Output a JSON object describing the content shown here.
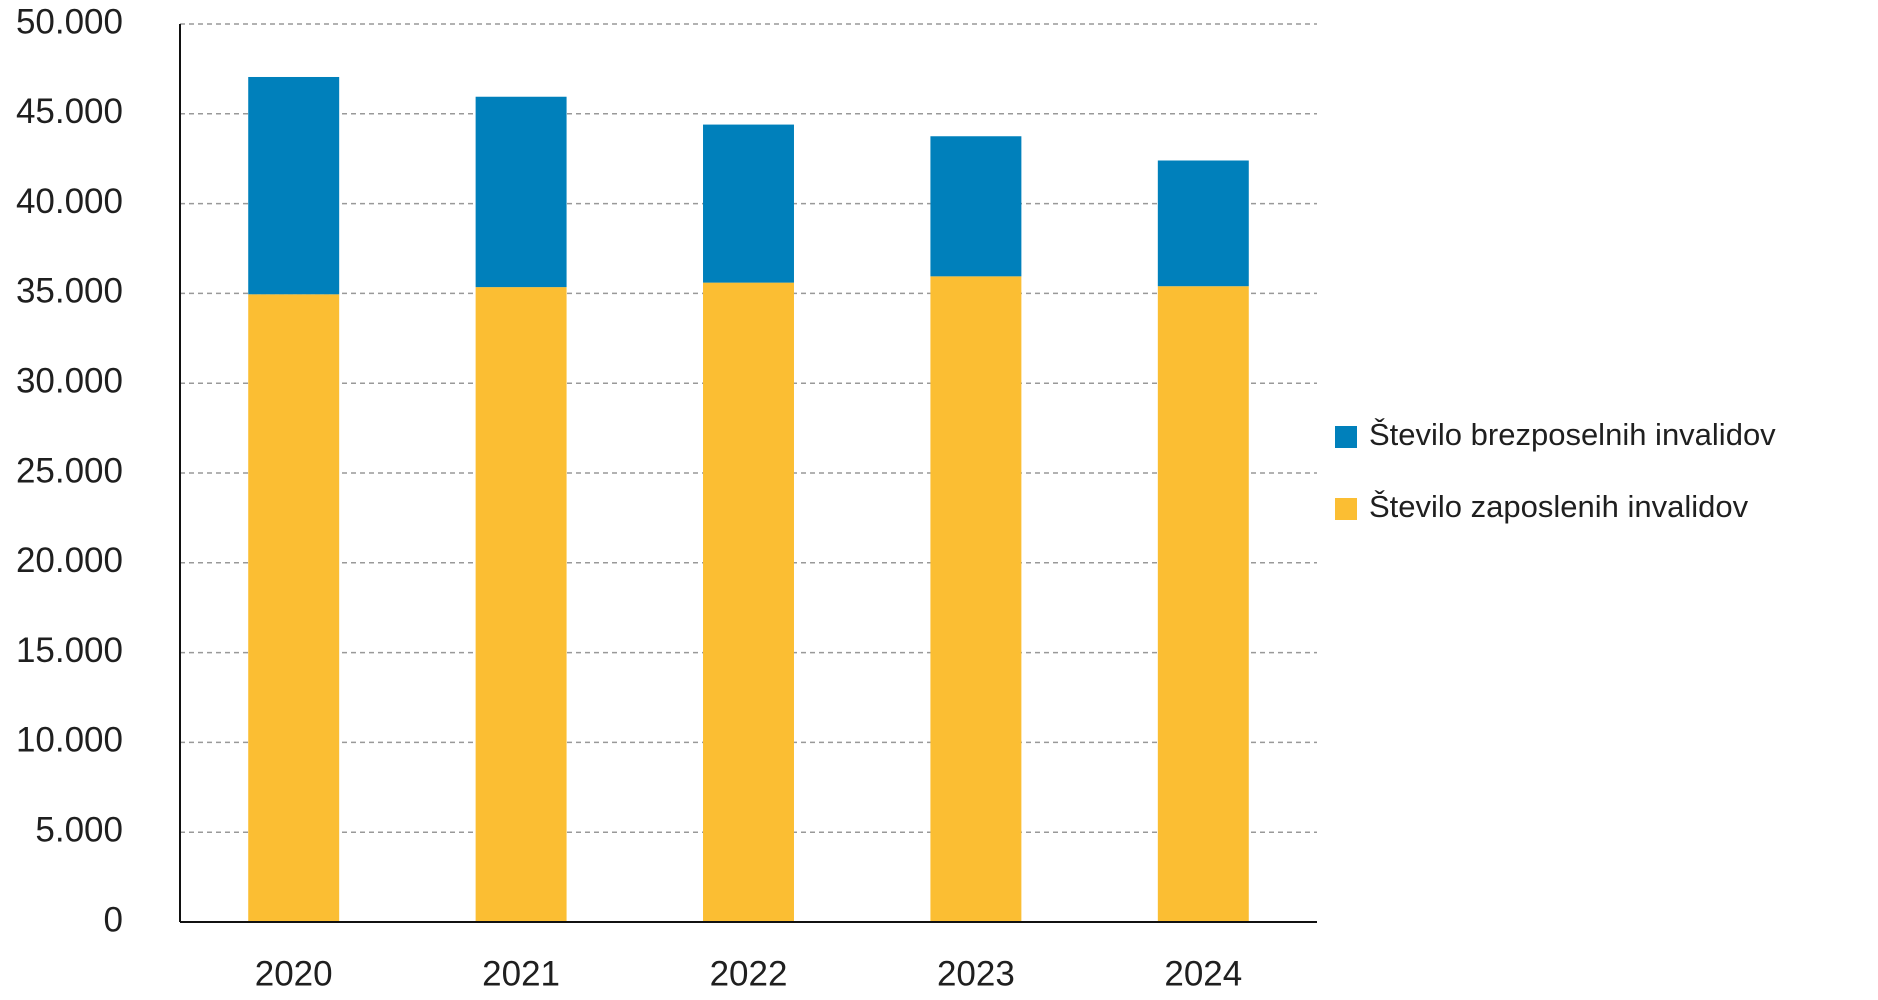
{
  "chart_data": {
    "type": "stacked_bar",
    "categories": [
      "2020",
      "2021",
      "2022",
      "2023",
      "2024"
    ],
    "series": [
      {
        "name": "Število zaposlenih invalidov",
        "color": "#fbbe33",
        "values": [
          34950,
          35350,
          35600,
          35950,
          35400
        ]
      },
      {
        "name": "Število brezposelnih invalidov",
        "color": "#0080bb",
        "values": [
          12100,
          10600,
          8800,
          7800,
          7000
        ]
      }
    ],
    "ylim": [
      0,
      50000
    ],
    "yticks": [
      0,
      {
        "value": 5000,
        "label": "5.000"
      },
      {
        "value": 10000,
        "label": "10.000"
      },
      {
        "value": 15000,
        "label": "15.000"
      },
      {
        "value": 20000,
        "label": "20.000"
      },
      {
        "value": 25000,
        "label": "25.000"
      },
      {
        "value": 30000,
        "label": "30.000"
      },
      {
        "value": 35000,
        "label": "35.000"
      },
      {
        "value": 40000,
        "label": "40.000"
      },
      {
        "value": 45000,
        "label": "45.000"
      },
      {
        "value": 50000,
        "label": "50.000"
      }
    ],
    "grid": true,
    "legend": "right"
  }
}
